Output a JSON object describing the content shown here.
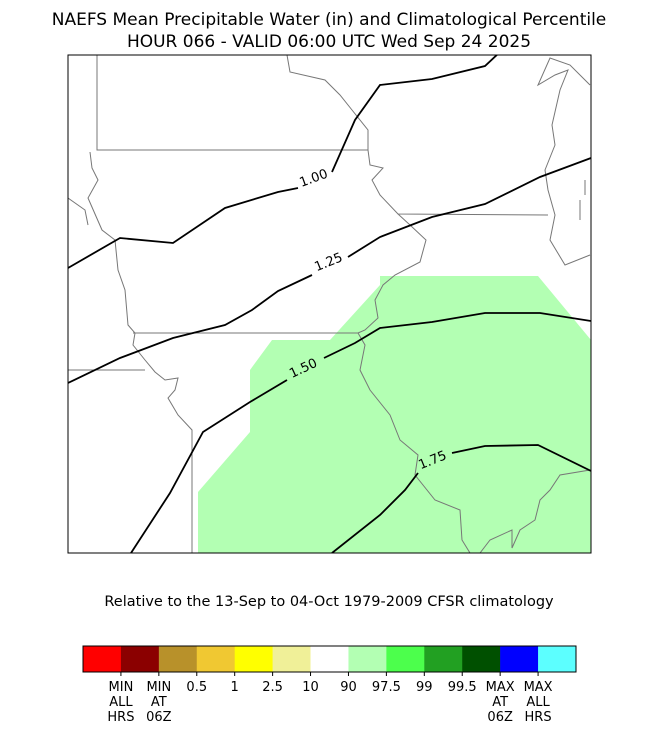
{
  "header": {
    "title": "NAEFS Mean Precipitable Water (in) and Climatological Percentile",
    "subtitle": "HOUR 066 - VALID 06:00 UTC Wed Sep 24 2025"
  },
  "map": {
    "contour_labels": [
      "1.00",
      "1.25",
      "1.50",
      "1.75"
    ]
  },
  "caption": "Relative to the 13-Sep to 04-Oct 1979-2009 CFSR climatology",
  "colorbar": {
    "colors": [
      "#ff0000",
      "#8b0000",
      "#b8912a",
      "#f0c832",
      "#ffff00",
      "#f0f098",
      "#ffffff",
      "#b3ffb3",
      "#4cff4c",
      "#22a022",
      "#005000",
      "#0000ff",
      "#5cffff"
    ],
    "labels": [
      [
        "MIN",
        "ALL",
        "HRS"
      ],
      [
        "MIN",
        "AT",
        "06Z"
      ],
      [
        "0.5"
      ],
      [
        "1"
      ],
      [
        "2.5"
      ],
      [
        "10"
      ],
      [
        "90"
      ],
      [
        "97.5"
      ],
      [
        "99"
      ],
      [
        "99.5"
      ],
      [
        "MAX",
        "AT",
        "06Z"
      ],
      [
        "MAX",
        "ALL",
        "HRS"
      ]
    ]
  }
}
